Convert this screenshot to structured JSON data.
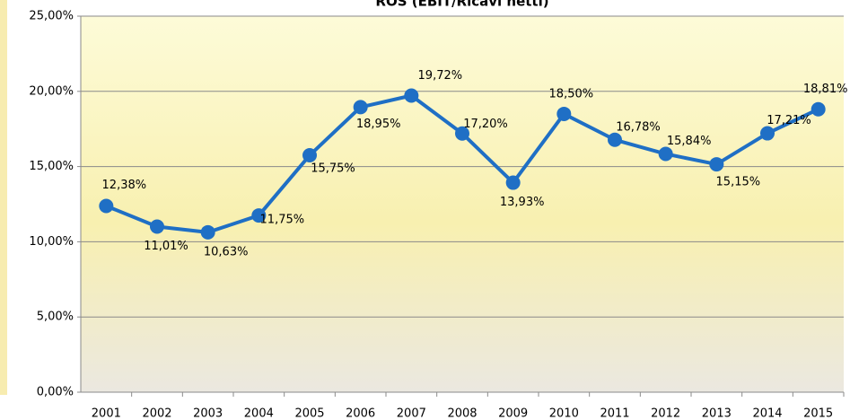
{
  "chart_data": {
    "type": "line",
    "title": "ROS (EBIT/Ricavi netti)",
    "categories": [
      "2001",
      "2002",
      "2003",
      "2004",
      "2005",
      "2006",
      "2007",
      "2008",
      "2009",
      "2010",
      "2011",
      "2012",
      "2013",
      "2014",
      "2015"
    ],
    "series": [
      {
        "name": "ROS",
        "color": "#1f6fc5",
        "values": [
          12.38,
          11.01,
          10.63,
          11.75,
          15.75,
          18.95,
          19.72,
          17.2,
          13.93,
          18.5,
          16.78,
          15.84,
          15.15,
          17.21,
          18.81
        ],
        "value_labels": [
          "12,38%",
          "11,01%",
          "10,63%",
          "11,75%",
          "15,75%",
          "18,95%",
          "19,72%",
          "17,20%",
          "13,93%",
          "18,50%",
          "16,78%",
          "15,84%",
          "15,15%",
          "17,21%",
          "18,81%"
        ]
      }
    ],
    "ylim": [
      0,
      25
    ],
    "yticks": [
      {
        "value": 0,
        "label": "0,00%"
      },
      {
        "value": 5,
        "label": "5,00%"
      },
      {
        "value": 10,
        "label": "10,00%"
      },
      {
        "value": 15,
        "label": "15,00%"
      },
      {
        "value": 20,
        "label": "20,00%"
      },
      {
        "value": 25,
        "label": "25,00%"
      }
    ],
    "grid": true
  }
}
